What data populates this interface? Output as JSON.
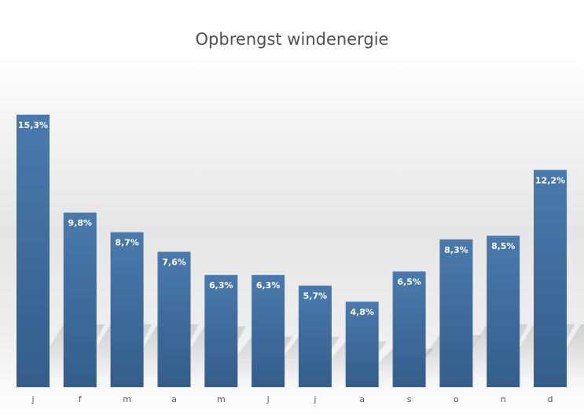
{
  "chart_data": {
    "type": "bar",
    "title": "Opbrengst windenergie",
    "xlabel": "",
    "ylabel": "",
    "categories": [
      "j",
      "f",
      "m",
      "a",
      "m",
      "j",
      "j",
      "a",
      "s",
      "o",
      "n",
      "d"
    ],
    "values": [
      15.3,
      9.8,
      8.7,
      7.6,
      6.3,
      6.3,
      5.7,
      4.8,
      6.5,
      8.3,
      8.5,
      12.2
    ],
    "data_labels": [
      "15,3%",
      "9,8%",
      "8,7%",
      "7,6%",
      "6,3%",
      "6,3%",
      "5,7%",
      "4,8%",
      "6,5%",
      "8,3%",
      "8,5%",
      "12,2%"
    ],
    "ylim": [
      0,
      15.3
    ],
    "unit": "%",
    "grid": false,
    "legend": "none",
    "colors": {
      "bar_top": "#4a7aad",
      "bar_bottom": "#345d8a"
    }
  }
}
